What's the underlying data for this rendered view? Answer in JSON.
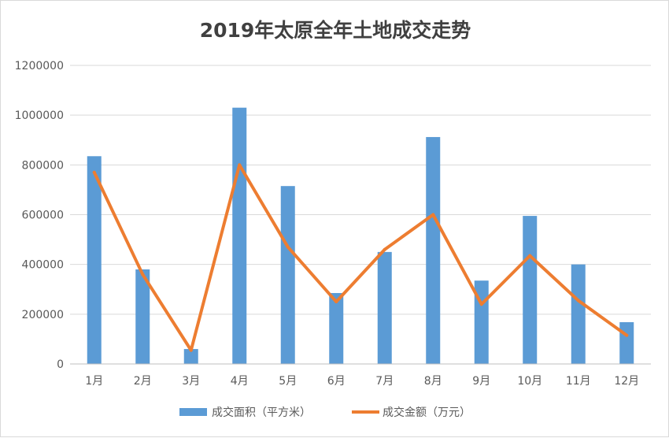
{
  "chart_data": {
    "type": "bar",
    "title": "2019年太原全年土地成交走势",
    "categories": [
      "1月",
      "2月",
      "3月",
      "4月",
      "5月",
      "6月",
      "7月",
      "8月",
      "9月",
      "10月",
      "11月",
      "12月"
    ],
    "ylim": [
      0,
      1200000
    ],
    "yticks": [
      "0",
      "200000",
      "400000",
      "600000",
      "800000",
      "1000000",
      "1200000"
    ],
    "grid": true,
    "legend_position": "bottom",
    "series": [
      {
        "name": "成交面积（平方米）",
        "type": "bar",
        "color": "#5b9bd5",
        "values": [
          835000,
          380000,
          60000,
          1030000,
          715000,
          285000,
          450000,
          912000,
          335000,
          595000,
          400000,
          168000
        ]
      },
      {
        "name": "成交金额（万元）",
        "type": "line",
        "color": "#ed7d31",
        "values": [
          770000,
          360000,
          55000,
          800000,
          470000,
          250000,
          460000,
          600000,
          240000,
          435000,
          255000,
          115000
        ]
      }
    ]
  }
}
